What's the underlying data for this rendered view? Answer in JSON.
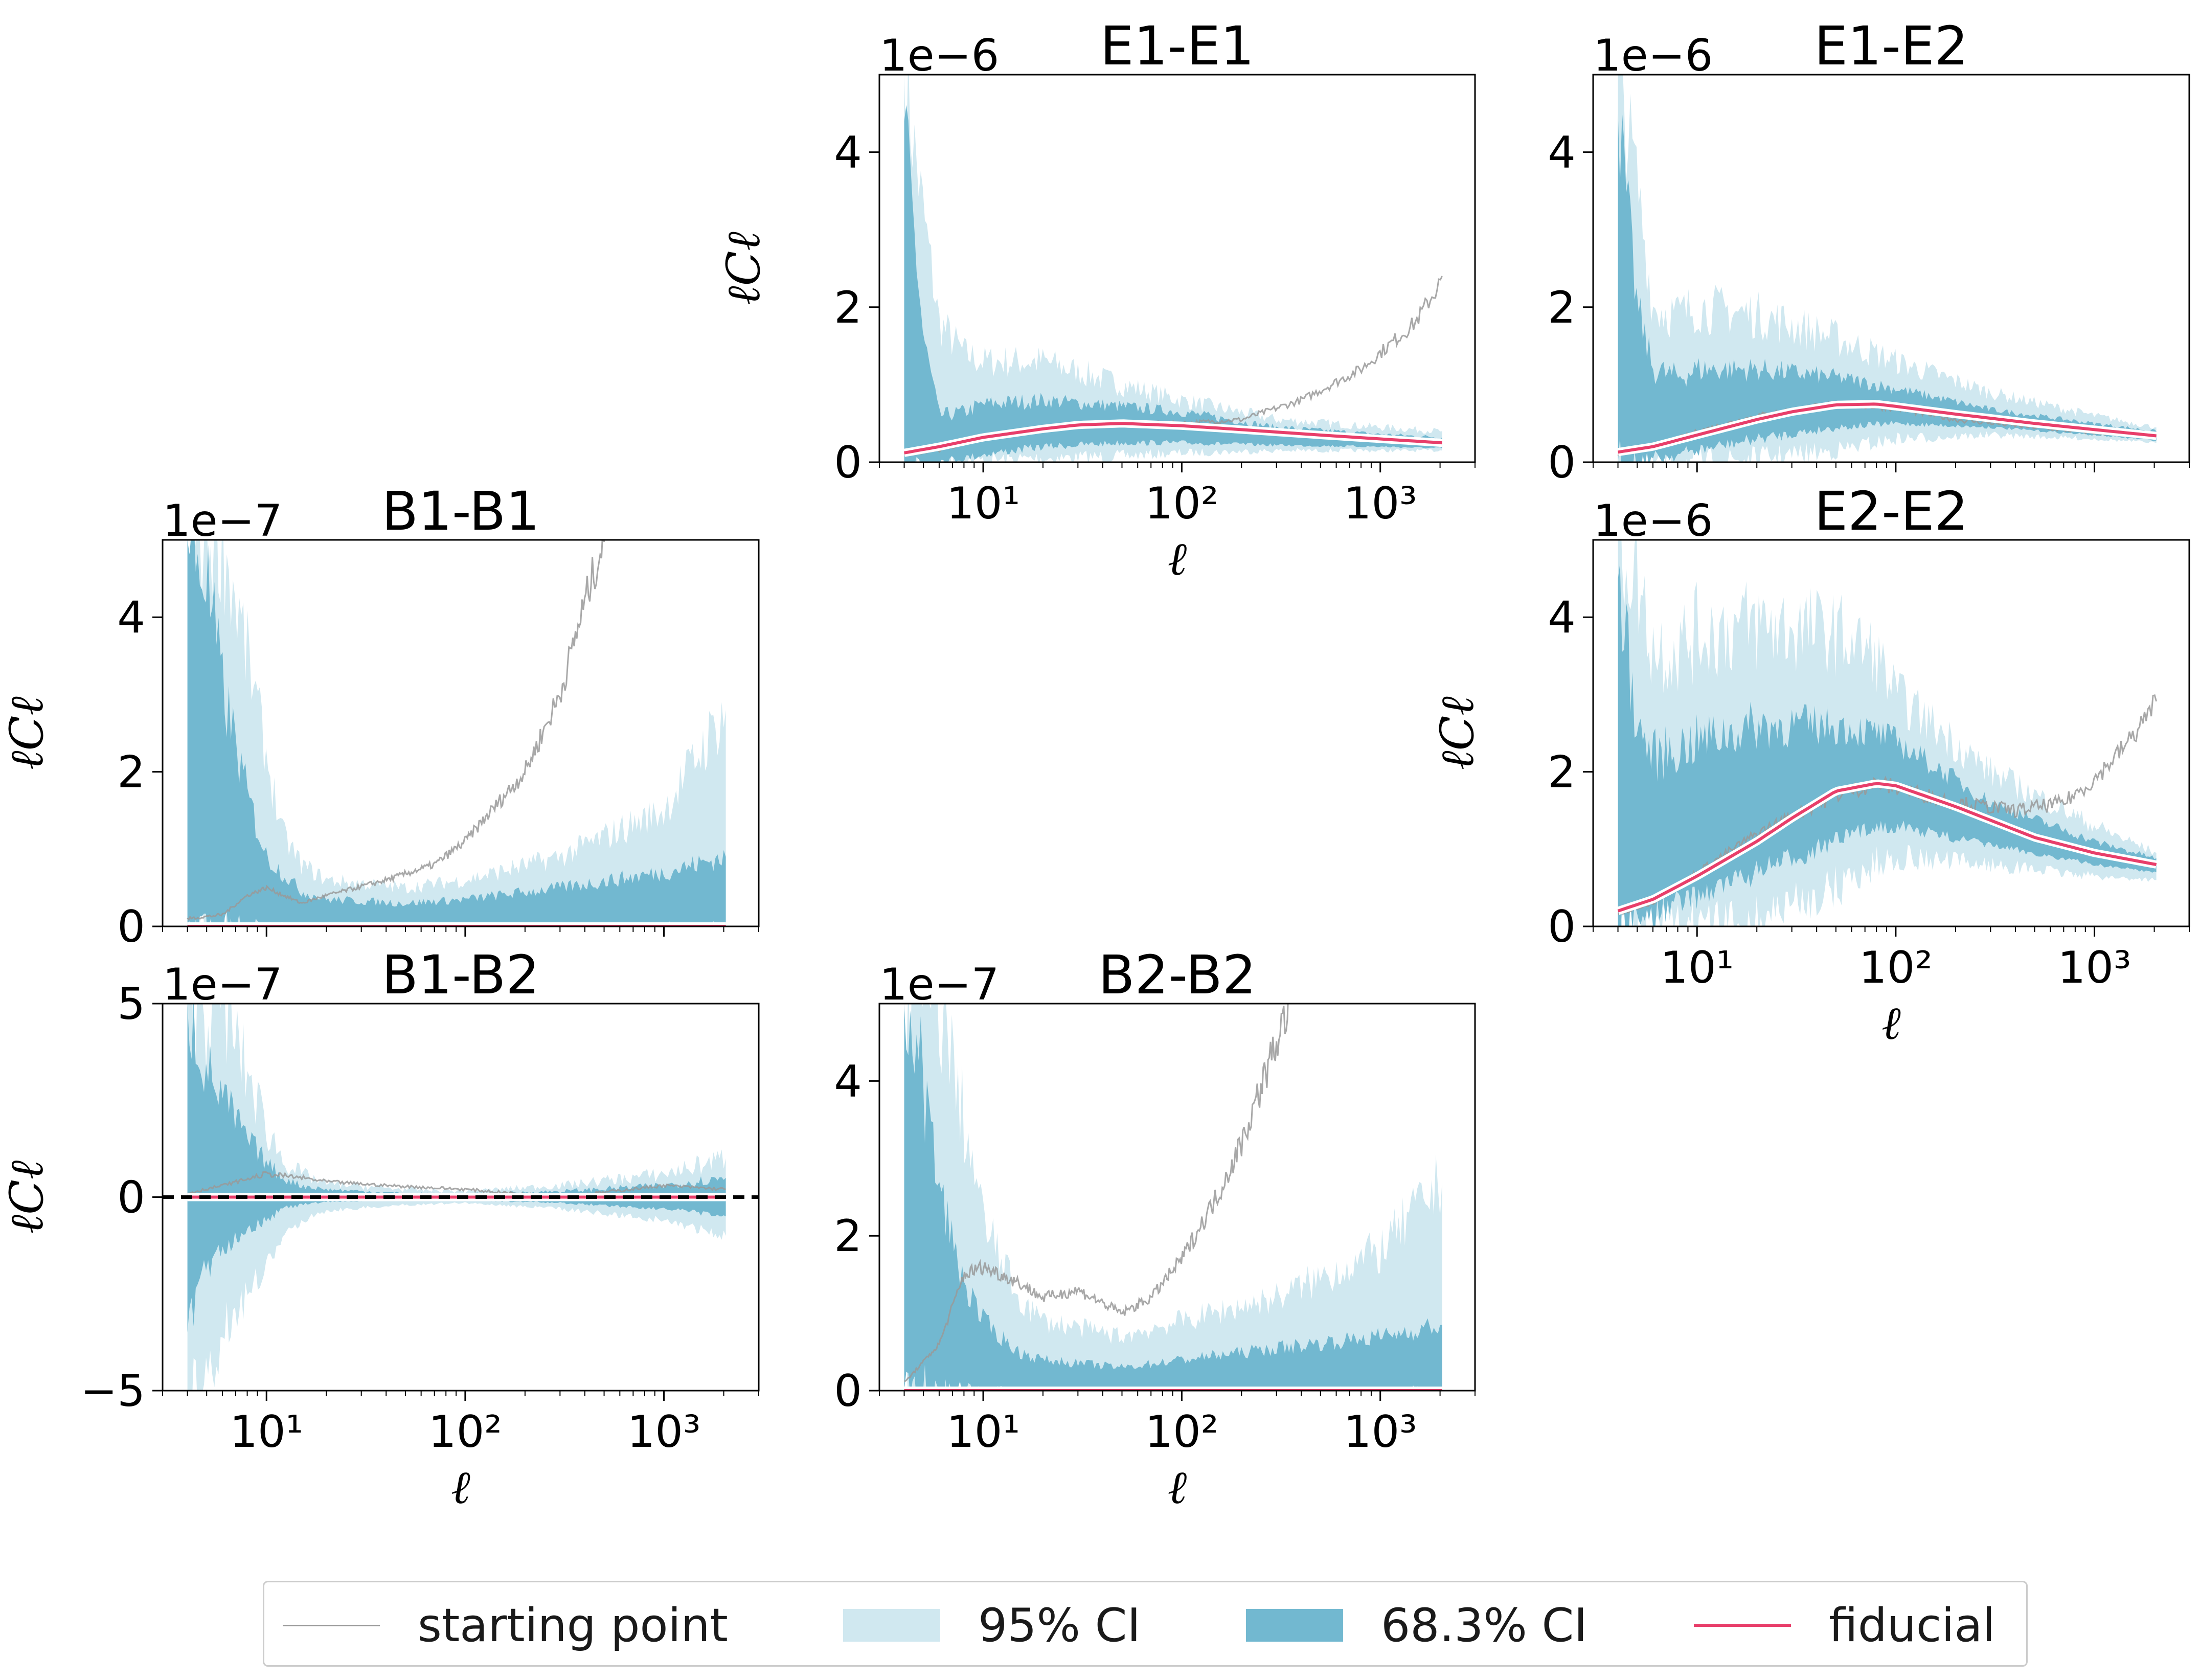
{
  "chart_data": [
    {
      "type": "area",
      "title": "E1-E1",
      "offset_text": "1e−6",
      "xlabel": "ℓ",
      "ylabel": "ℓCℓ",
      "xscale": "log",
      "xlim": [
        3,
        3000
      ],
      "ylim": [
        0,
        5
      ],
      "yticks": [
        "0",
        "2",
        "4"
      ],
      "xticks": [
        "10¹",
        "10²",
        "10³"
      ],
      "series": [
        {
          "name": "starting point",
          "x": [
            4,
            6,
            10,
            20,
            50,
            100,
            200,
            400,
            800,
            1500,
            2048
          ],
          "y": [
            0.1,
            0.15,
            0.3,
            0.45,
            0.5,
            0.5,
            0.55,
            0.8,
            1.2,
            1.8,
            2.35
          ]
        },
        {
          "name": "fiducial",
          "x": [
            4,
            6,
            10,
            20,
            30,
            50,
            100,
            200,
            500,
            1000,
            2048
          ],
          "y": [
            0.12,
            0.2,
            0.32,
            0.43,
            0.48,
            0.5,
            0.47,
            0.42,
            0.35,
            0.3,
            0.25
          ]
        },
        {
          "name": "95% CI",
          "x": [
            4,
            5,
            6,
            8,
            10,
            20,
            50,
            100,
            300,
            1000,
            2048
          ],
          "upper": [
            5,
            3.2,
            1.8,
            1.4,
            1.3,
            1.3,
            1.0,
            0.8,
            0.55,
            0.45,
            0.4
          ],
          "lower": [
            0,
            0,
            0,
            0,
            0.02,
            0.05,
            0.08,
            0.12,
            0.15,
            0.15,
            0.15
          ]
        },
        {
          "name": "68.3% CI",
          "x": [
            4,
            5,
            6,
            8,
            10,
            20,
            50,
            100,
            300,
            1000,
            2048
          ],
          "upper": [
            4.4,
            1.6,
            0.6,
            0.65,
            0.75,
            0.8,
            0.72,
            0.65,
            0.45,
            0.36,
            0.32
          ],
          "lower": [
            0,
            0,
            0.02,
            0.05,
            0.1,
            0.2,
            0.25,
            0.25,
            0.22,
            0.2,
            0.18
          ]
        }
      ]
    },
    {
      "type": "area",
      "title": "E1-E2",
      "offset_text": "1e−6",
      "xlabel": "",
      "ylabel": "",
      "xscale": "log",
      "xlim": [
        3,
        3000
      ],
      "ylim": [
        0,
        5
      ],
      "yticks": [
        "0",
        "2",
        "4"
      ],
      "xticks": [],
      "series": [
        {
          "name": "starting point",
          "x": [
            4,
            6,
            10,
            20,
            50,
            100,
            200,
            500,
            1000,
            2048
          ],
          "y": [
            0.1,
            0.2,
            0.4,
            0.6,
            0.75,
            0.7,
            0.55,
            0.45,
            0.38,
            0.33
          ]
        },
        {
          "name": "fiducial",
          "x": [
            4,
            6,
            10,
            20,
            30,
            50,
            80,
            100,
            200,
            500,
            1000,
            2048
          ],
          "y": [
            0.13,
            0.2,
            0.35,
            0.55,
            0.65,
            0.74,
            0.75,
            0.72,
            0.62,
            0.5,
            0.42,
            0.34
          ]
        },
        {
          "name": "95% CI",
          "x": [
            4,
            5,
            6,
            8,
            10,
            20,
            50,
            100,
            300,
            1000,
            2048
          ],
          "upper": [
            5,
            3.6,
            2.0,
            1.9,
            2.0,
            1.9,
            1.6,
            1.3,
            0.9,
            0.6,
            0.45
          ],
          "lower": [
            0,
            0,
            0,
            0,
            0,
            0.05,
            0.15,
            0.3,
            0.35,
            0.3,
            0.25
          ]
        },
        {
          "name": "68.3% CI",
          "x": [
            4,
            5,
            6,
            8,
            10,
            20,
            50,
            100,
            300,
            1000,
            2048
          ],
          "upper": [
            4.5,
            2.0,
            1.2,
            1.1,
            1.2,
            1.2,
            1.1,
            0.95,
            0.68,
            0.5,
            0.4
          ],
          "lower": [
            0,
            0.02,
            0.05,
            0.1,
            0.15,
            0.3,
            0.45,
            0.5,
            0.45,
            0.35,
            0.28
          ]
        }
      ]
    },
    {
      "type": "area",
      "title": "B1-B1",
      "offset_text": "1e−7",
      "xlabel": "",
      "ylabel": "ℓCℓ",
      "xscale": "log",
      "xlim": [
        3,
        3000
      ],
      "ylim": [
        0,
        5
      ],
      "yticks": [
        "0",
        "2",
        "4"
      ],
      "xticks": [],
      "series": [
        {
          "name": "starting point",
          "x": [
            4,
            6,
            8,
            10,
            15,
            20,
            40,
            70,
            100,
            200,
            300,
            400,
            500
          ],
          "y": [
            0.1,
            0.15,
            0.4,
            0.5,
            0.3,
            0.4,
            0.6,
            0.8,
            1.1,
            2.0,
            3.0,
            4.2,
            5.0
          ]
        },
        {
          "name": "fiducial",
          "x": [
            4,
            2048
          ],
          "y": [
            0.0,
            0.0
          ]
        },
        {
          "name": "95% CI",
          "x": [
            4,
            6,
            8,
            10,
            12,
            15,
            20,
            50,
            100,
            300,
            1000,
            2048
          ],
          "upper": [
            5,
            5,
            3.5,
            2.2,
            1.2,
            0.8,
            0.6,
            0.5,
            0.6,
            0.9,
            1.5,
            2.8
          ],
          "lower": [
            0,
            0,
            0,
            0,
            0,
            0,
            0,
            0,
            0,
            0,
            0,
            0
          ]
        },
        {
          "name": "68.3% CI",
          "x": [
            4,
            5,
            6,
            8,
            10,
            15,
            20,
            50,
            100,
            300,
            1000,
            2048
          ],
          "upper": [
            5,
            4.5,
            3.1,
            1.7,
            0.9,
            0.45,
            0.35,
            0.3,
            0.35,
            0.5,
            0.7,
            0.9
          ],
          "lower": [
            0,
            0,
            0,
            0,
            0,
            0,
            0,
            0,
            0,
            0,
            0,
            0
          ]
        }
      ]
    },
    {
      "type": "area",
      "title": "E2-E2",
      "offset_text": "1e−6",
      "xlabel": "ℓ",
      "ylabel": "ℓCℓ",
      "xscale": "log",
      "xlim": [
        3,
        3000
      ],
      "ylim": [
        0,
        5
      ],
      "yticks": [
        "0",
        "2",
        "4"
      ],
      "xticks": [
        "10¹",
        "10²",
        "10³"
      ],
      "series": [
        {
          "name": "starting point",
          "x": [
            4,
            6,
            10,
            20,
            50,
            80,
            100,
            200,
            400,
            700,
            1000,
            1500,
            2048
          ],
          "y": [
            0.15,
            0.3,
            0.7,
            1.2,
            1.7,
            1.85,
            1.8,
            1.6,
            1.5,
            1.6,
            1.9,
            2.4,
            2.9
          ]
        },
        {
          "name": "fiducial",
          "x": [
            4,
            6,
            10,
            20,
            30,
            50,
            80,
            100,
            200,
            500,
            1000,
            2048
          ],
          "y": [
            0.2,
            0.35,
            0.65,
            1.1,
            1.4,
            1.75,
            1.85,
            1.82,
            1.55,
            1.15,
            0.95,
            0.8
          ]
        },
        {
          "name": "95% CI",
          "x": [
            4,
            5,
            6,
            8,
            10,
            20,
            50,
            80,
            100,
            300,
            1000,
            2048
          ],
          "upper": [
            5,
            4.5,
            3.6,
            3.6,
            3.8,
            3.9,
            3.8,
            3.5,
            3.0,
            2.0,
            1.3,
            0.95
          ],
          "lower": [
            0,
            0,
            0,
            0,
            0,
            0.1,
            0.5,
            0.8,
            0.9,
            0.8,
            0.65,
            0.6
          ]
        },
        {
          "name": "68.3% CI",
          "x": [
            4,
            5,
            6,
            8,
            10,
            20,
            50,
            80,
            100,
            300,
            1000,
            2048
          ],
          "upper": [
            4.5,
            2.6,
            2.2,
            2.3,
            2.4,
            2.6,
            2.6,
            2.5,
            2.4,
            1.6,
            1.1,
            0.88
          ],
          "lower": [
            0,
            0.1,
            0.15,
            0.3,
            0.4,
            0.7,
            1.1,
            1.3,
            1.3,
            1.05,
            0.8,
            0.7
          ]
        }
      ]
    },
    {
      "type": "area",
      "title": "B1-B2",
      "offset_text": "1e−7",
      "xlabel": "ℓ",
      "ylabel": "ℓCℓ",
      "xscale": "log",
      "xlim": [
        3,
        3000
      ],
      "ylim": [
        -5,
        5
      ],
      "yticks": [
        "−5",
        "0",
        "5"
      ],
      "xticks": [
        "10¹",
        "10²",
        "10³"
      ],
      "series": [
        {
          "name": "starting point",
          "x": [
            4,
            6,
            10,
            15,
            20,
            40,
            100,
            300,
            1000,
            2048
          ],
          "y": [
            0.1,
            0.3,
            0.6,
            0.5,
            0.4,
            0.3,
            0.2,
            0.0,
            0.3,
            0.2
          ]
        },
        {
          "name": "fiducial",
          "x": [
            4,
            2048
          ],
          "y": [
            0.0,
            0.0
          ]
        },
        {
          "name": "95% CI",
          "x": [
            4,
            5,
            6,
            8,
            10,
            12,
            15,
            20,
            50,
            100,
            300,
            1000,
            2048
          ],
          "upper": [
            5,
            5,
            5,
            3.2,
            1.8,
            1.0,
            0.6,
            0.35,
            0.2,
            0.15,
            0.3,
            0.6,
            1.0
          ],
          "lower": [
            -5,
            -5,
            -3.5,
            -2.5,
            -1.8,
            -1.1,
            -0.6,
            -0.35,
            -0.2,
            -0.15,
            -0.3,
            -0.6,
            -1.0
          ]
        },
        {
          "name": "68.3% CI",
          "x": [
            4,
            5,
            6,
            8,
            10,
            12,
            15,
            20,
            50,
            100,
            300,
            1000,
            2048
          ],
          "upper": [
            5,
            3.3,
            2.6,
            1.5,
            0.9,
            0.5,
            0.3,
            0.2,
            0.1,
            0.08,
            0.15,
            0.3,
            0.5
          ],
          "lower": [
            -3.5,
            -1.8,
            -1.3,
            -0.8,
            -0.6,
            -0.3,
            -0.2,
            -0.12,
            -0.08,
            -0.08,
            -0.15,
            -0.3,
            -0.5
          ]
        }
      ]
    },
    {
      "type": "area",
      "title": "B2-B2",
      "offset_text": "1e−7",
      "xlabel": "ℓ",
      "ylabel": "",
      "xscale": "log",
      "xlim": [
        3,
        3000
      ],
      "ylim": [
        0,
        5
      ],
      "yticks": [
        "0",
        "2",
        "4"
      ],
      "xticks": [
        "10¹",
        "10²",
        "10³"
      ],
      "series": [
        {
          "name": "starting point",
          "x": [
            4,
            6,
            8,
            10,
            15,
            20,
            30,
            50,
            70,
            100,
            150,
            200,
            300,
            350
          ],
          "y": [
            0.1,
            0.6,
            1.5,
            1.6,
            1.4,
            1.2,
            1.3,
            1.0,
            1.2,
            1.7,
            2.5,
            3.2,
            4.5,
            5.0
          ]
        },
        {
          "name": "fiducial",
          "x": [
            4,
            2048
          ],
          "y": [
            0.0,
            0.0
          ]
        },
        {
          "name": "95% CI",
          "x": [
            4,
            6,
            8,
            10,
            15,
            20,
            50,
            100,
            300,
            1000,
            2048
          ],
          "upper": [
            5,
            5,
            3.5,
            2.2,
            1.2,
            0.9,
            0.7,
            0.9,
            1.2,
            1.8,
            2.7
          ],
          "lower": [
            0,
            0,
            0,
            0,
            0,
            0,
            0,
            0,
            0,
            0,
            0
          ]
        },
        {
          "name": "68.3% CI",
          "x": [
            4,
            5,
            6,
            8,
            10,
            15,
            20,
            50,
            100,
            300,
            1000,
            2048
          ],
          "upper": [
            5,
            4.0,
            2.6,
            1.4,
            0.9,
            0.5,
            0.4,
            0.3,
            0.4,
            0.55,
            0.7,
            0.85
          ],
          "lower": [
            0,
            0,
            0,
            0,
            0,
            0,
            0,
            0,
            0,
            0,
            0,
            0
          ]
        }
      ]
    }
  ],
  "legend": {
    "placement": "bottom-center",
    "items": [
      "starting point",
      "95% CI",
      "68.3% CI",
      "fiducial"
    ]
  },
  "colors": {
    "starting_point": "#999999",
    "ci95": "#d0e8f0",
    "ci68": "#72b8d0",
    "fiducial": "#e83e6a",
    "fiducial_halo": "#ffffff",
    "axis": "#000000"
  }
}
